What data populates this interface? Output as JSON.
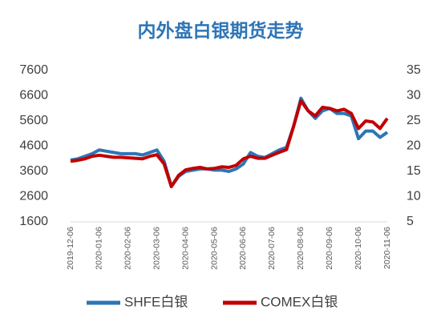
{
  "chart_data": {
    "type": "line",
    "title": "内外盘白银期货走势",
    "title_color": "#2e75b6",
    "categories": [
      "2019-12-06",
      null,
      null,
      null,
      "2020-01-06",
      null,
      null,
      null,
      "2020-02-06",
      null,
      null,
      null,
      "2020-03-06",
      null,
      null,
      null,
      "2020-04-06",
      null,
      null,
      null,
      "2020-05-06",
      null,
      null,
      null,
      "2020-06-06",
      null,
      null,
      null,
      "2020-07-06",
      null,
      null,
      null,
      "2020-08-06",
      null,
      null,
      null,
      "2020-09-06",
      null,
      null,
      null,
      "2020-10-06",
      null,
      null,
      null,
      "2020-11-06"
    ],
    "series": [
      {
        "name": "SHFE白银",
        "color": "#2e75b6",
        "values": [
          4050,
          4100,
          4200,
          4300,
          4450,
          4400,
          4350,
          4300,
          4300,
          4300,
          4250,
          4350,
          4450,
          4000,
          3000,
          3400,
          3600,
          3650,
          3700,
          3700,
          3650,
          3650,
          3600,
          3700,
          3900,
          4350,
          4200,
          4150,
          4300,
          4450,
          4550,
          5400,
          6500,
          6000,
          5700,
          6000,
          6100,
          5900,
          5900,
          5800,
          4900,
          5200,
          5200,
          4950,
          5150
        ]
      },
      {
        "name": "COMEX白银",
        "color": "#c00000",
        "axis": "y2",
        "values": [
          17.0,
          17.2,
          17.5,
          18.0,
          18.2,
          18.0,
          17.8,
          17.8,
          17.7,
          17.6,
          17.5,
          18.0,
          18.3,
          16.5,
          12.0,
          14.2,
          15.3,
          15.6,
          15.8,
          15.5,
          15.6,
          15.9,
          15.8,
          16.2,
          17.5,
          18.0,
          17.6,
          17.6,
          18.2,
          18.8,
          19.3,
          24.0,
          29.0,
          27.0,
          26.0,
          27.7,
          27.5,
          27.0,
          27.3,
          26.5,
          23.5,
          25.0,
          24.8,
          23.5,
          25.5
        ]
      }
    ],
    "ylim": [
      1600,
      7600
    ],
    "yticks": [
      1600,
      2600,
      3600,
      4600,
      5600,
      6600,
      7600
    ],
    "y2lim": [
      5,
      35
    ],
    "y2ticks": [
      5,
      10,
      15,
      20,
      25,
      30,
      35
    ],
    "grid": false,
    "legend": "bottom"
  }
}
